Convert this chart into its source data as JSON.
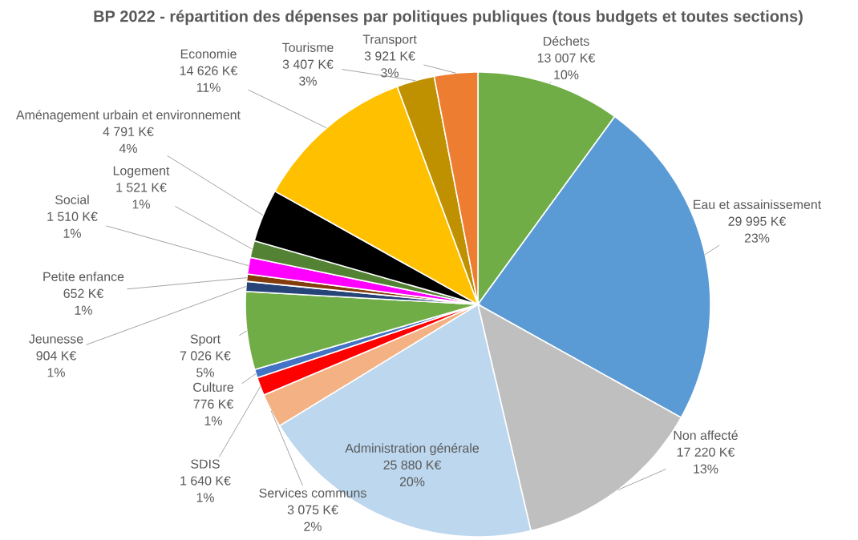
{
  "chart_data": {
    "type": "pie",
    "title": "BP 2022 - répartition des dépenses par politiques publiques (tous budgets et toutes sections)",
    "categories": [
      "Déchets",
      "Eau et assainissement",
      "Non affecté",
      "Administration générale",
      "Services communs",
      "SDIS",
      "Culture",
      "Sport",
      "Jeunesse",
      "Petite enfance",
      "Social",
      "Logement",
      "Aménagement urbain et environnement",
      "Economie",
      "Tourisme",
      "Transport"
    ],
    "values": [
      13007,
      29995,
      17220,
      25880,
      3075,
      1640,
      776,
      7026,
      904,
      652,
      1510,
      1521,
      4791,
      14626,
      3407,
      3921
    ],
    "colors": [
      "#70ad47",
      "#5b9bd5",
      "#bfbfbf",
      "#bdd7ee",
      "#f4b183",
      "#ff0000",
      "#4472c4",
      "#70ad47",
      "#264478",
      "#843c0c",
      "#ff00ff",
      "#548235",
      "#000000",
      "#ffc000",
      "#bf9000",
      "#ed7d31"
    ],
    "value_labels": [
      "13 007 K€ 10%",
      "29 995 K€ 23%",
      "17 220 K€ 13%",
      "25 880 K€ 20%",
      "3 075 K€ 2%",
      "1 640 K€ 1%",
      "776 K€ 1%",
      "7 026 K€ 5%",
      "904 K€ 1%",
      "652 K€ 1%",
      "1 510 K€ 1%",
      "1 521 K€ 1%",
      "4 791 K€ 4%",
      "14 626 K€ 11%",
      "3 407 K€ 3%",
      "3 921 K€ 3%"
    ]
  }
}
